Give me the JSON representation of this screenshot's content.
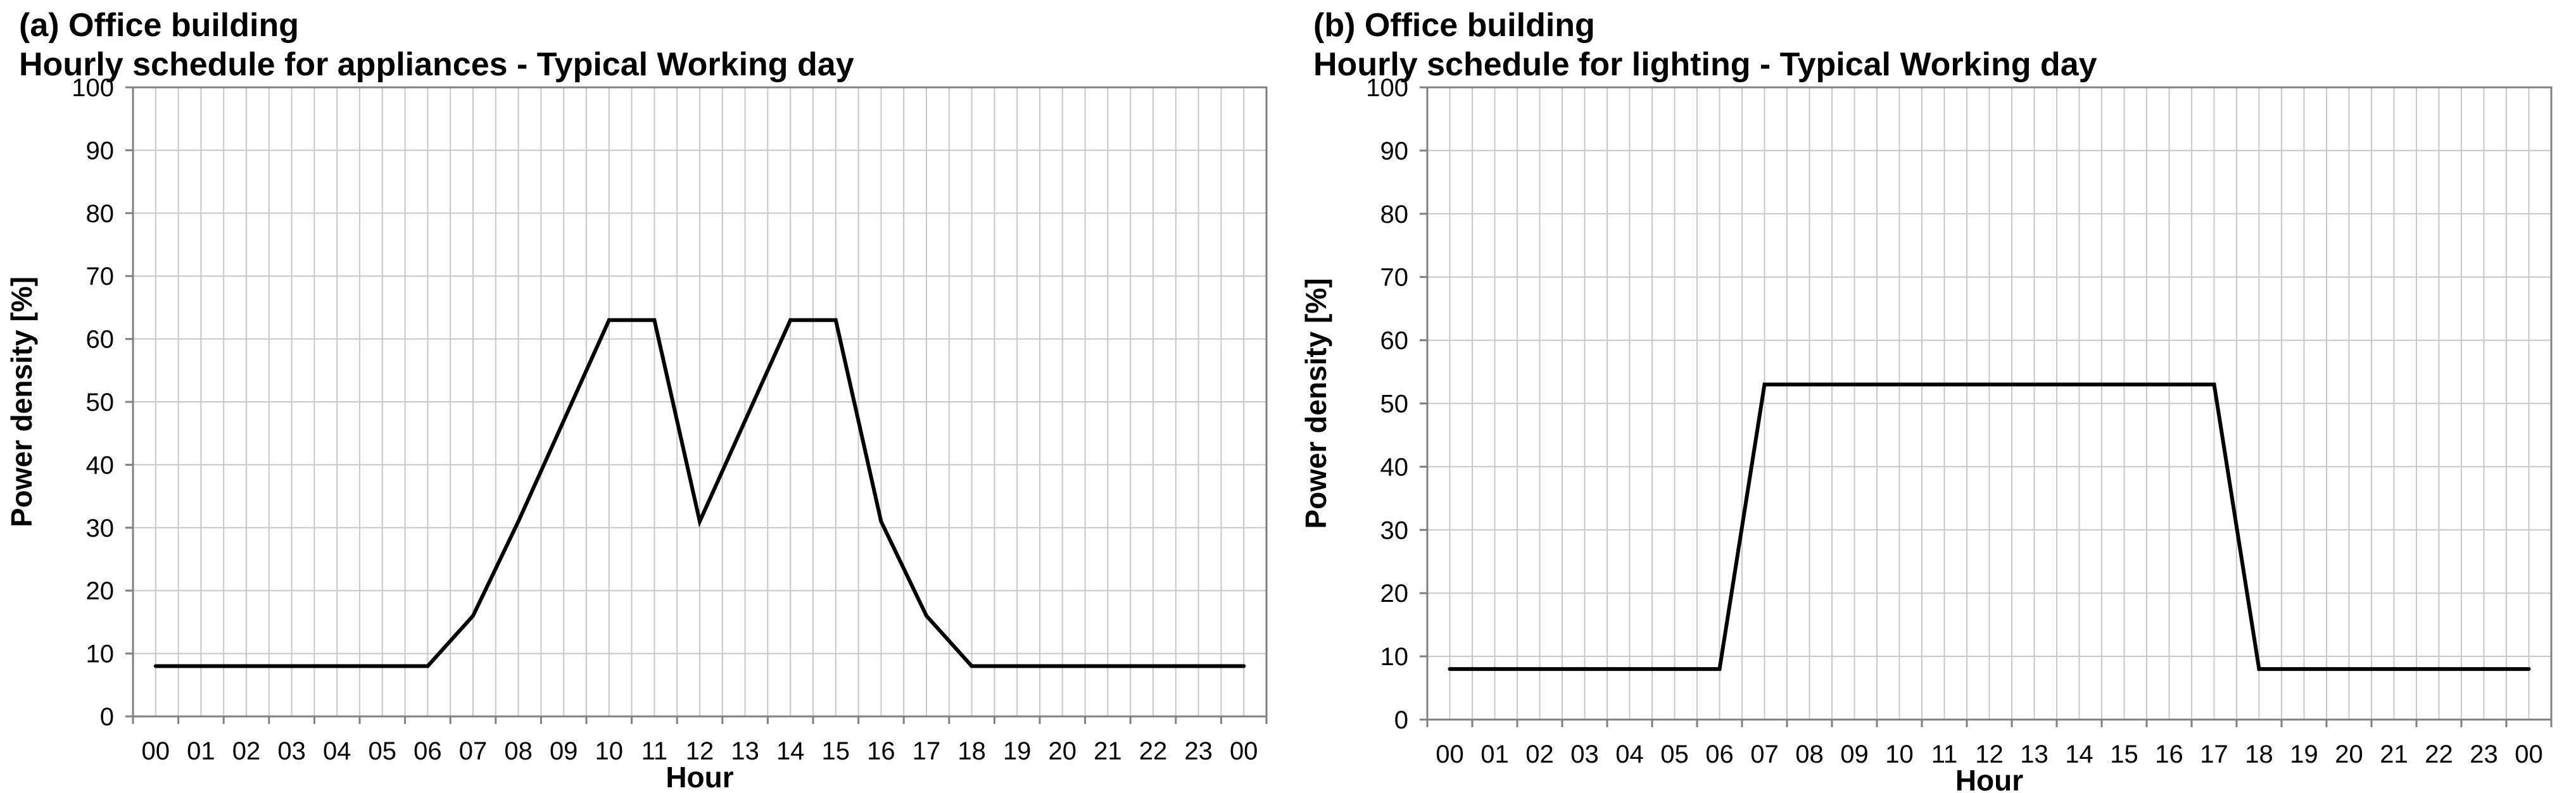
{
  "chart_data": [
    {
      "type": "line",
      "panel_label": "(a) Office building",
      "title": "Hourly schedule for appliances - Typical Working day",
      "xlabel": "Hour",
      "ylabel": "Power density [%]",
      "ylim": [
        0,
        100
      ],
      "yticks": [
        "0",
        "10",
        "20",
        "30",
        "40",
        "50",
        "60",
        "70",
        "80",
        "90",
        "100"
      ],
      "categories": [
        "00",
        "01",
        "02",
        "03",
        "04",
        "05",
        "06",
        "07",
        "08",
        "09",
        "10",
        "11",
        "12",
        "13",
        "14",
        "15",
        "16",
        "17",
        "18",
        "19",
        "20",
        "21",
        "22",
        "23",
        "00"
      ],
      "grid": true,
      "line_color": "#000000",
      "values": [
        8,
        8,
        8,
        8,
        8,
        8,
        8,
        16,
        31,
        47,
        63,
        63,
        31,
        47,
        63,
        63,
        31,
        16,
        8,
        8,
        8,
        8,
        8,
        8,
        8
      ]
    },
    {
      "type": "line",
      "panel_label": "(b) Office building",
      "title": "Hourly schedule for lighting - Typical Working day",
      "xlabel": "Hour",
      "ylabel": "Power density [%]",
      "ylim": [
        0,
        100
      ],
      "yticks": [
        "0",
        "10",
        "20",
        "30",
        "40",
        "50",
        "60",
        "70",
        "80",
        "90",
        "100"
      ],
      "categories": [
        "00",
        "01",
        "02",
        "03",
        "04",
        "05",
        "06",
        "07",
        "08",
        "09",
        "10",
        "11",
        "12",
        "13",
        "14",
        "15",
        "16",
        "17",
        "18",
        "19",
        "20",
        "21",
        "22",
        "23",
        "00"
      ],
      "grid": true,
      "line_color": "#000000",
      "values": [
        8,
        8,
        8,
        8,
        8,
        8,
        8,
        53,
        53,
        53,
        53,
        53,
        53,
        53,
        53,
        53,
        53,
        53,
        8,
        8,
        8,
        8,
        8,
        8,
        8
      ]
    }
  ]
}
